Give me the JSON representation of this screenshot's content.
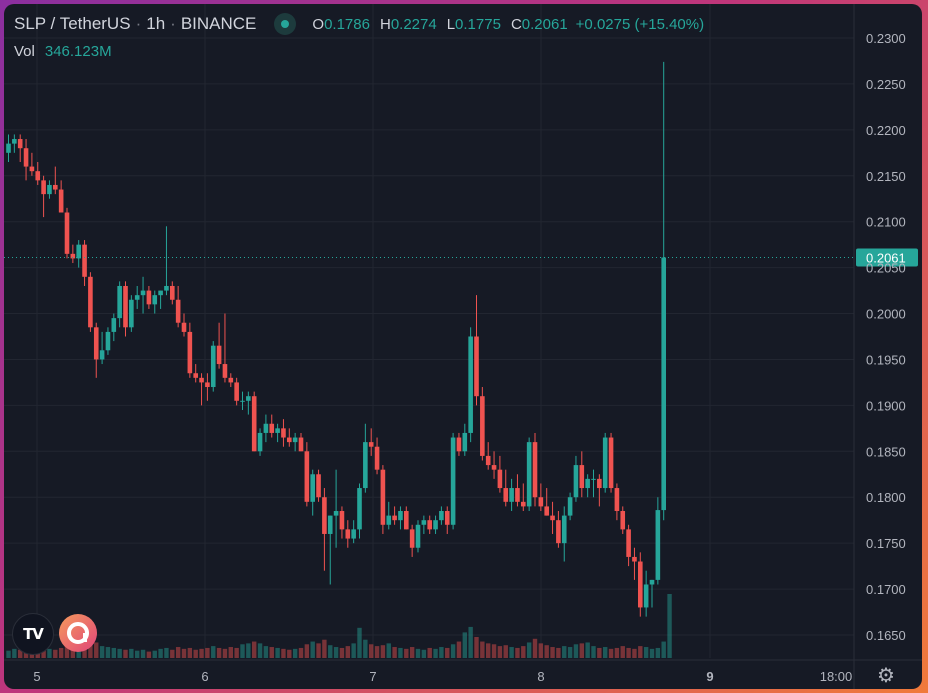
{
  "legend": {
    "symbol": "SLP / TetherUS",
    "interval": "1h",
    "exchange": "BINANCE",
    "ohlc": {
      "o_label": "O",
      "o": "0.1786",
      "h_label": "H",
      "h": "0.2274",
      "l_label": "L",
      "l": "0.1775",
      "c_label": "C",
      "c": "0.2061",
      "change": "+0.0275 (+15.40%)"
    },
    "vol_label": "Vol",
    "vol_value": "346.123M"
  },
  "colors": {
    "background": "#161a25",
    "up": "#26a69a",
    "down": "#ef5350",
    "grid": "#222631",
    "axis_text": "#b2b5be"
  },
  "icons": {
    "tradingview": "tradingview-logo",
    "brand": "brand-a-logo",
    "settings": "gear-icon"
  },
  "last_price_label": "0.2061",
  "chart_data": {
    "type": "candlestick",
    "title": "SLP / TetherUS",
    "x_ticks": [
      "5",
      "6",
      "7",
      "8",
      "9",
      "18:00"
    ],
    "bold_tick": "9",
    "y_ticks": [
      "0.1650",
      "0.1700",
      "0.1750",
      "0.1800",
      "0.1850",
      "0.1900",
      "0.1950",
      "0.2000",
      "0.2050",
      "0.2100",
      "0.2150",
      "0.2200",
      "0.2250",
      "0.2300"
    ],
    "ylim": [
      0.163,
      0.231
    ],
    "last_price": 0.2061,
    "candles": [
      [
        0.2175,
        0.2195,
        0.2165,
        0.2185
      ],
      [
        0.2185,
        0.2195,
        0.2175,
        0.219
      ],
      [
        0.219,
        0.2195,
        0.2165,
        0.218
      ],
      [
        0.218,
        0.219,
        0.2145,
        0.216
      ],
      [
        0.216,
        0.2175,
        0.215,
        0.2155
      ],
      [
        0.2155,
        0.2165,
        0.214,
        0.2145
      ],
      [
        0.2145,
        0.215,
        0.2105,
        0.213
      ],
      [
        0.213,
        0.2145,
        0.2125,
        0.214
      ],
      [
        0.214,
        0.216,
        0.213,
        0.2135
      ],
      [
        0.2135,
        0.2145,
        0.211,
        0.211
      ],
      [
        0.211,
        0.2115,
        0.206,
        0.2065
      ],
      [
        0.2065,
        0.2075,
        0.2055,
        0.206
      ],
      [
        0.206,
        0.208,
        0.205,
        0.2075
      ],
      [
        0.2075,
        0.208,
        0.203,
        0.204
      ],
      [
        0.204,
        0.2045,
        0.198,
        0.1985
      ],
      [
        0.1985,
        0.199,
        0.193,
        0.195
      ],
      [
        0.195,
        0.198,
        0.1945,
        0.196
      ],
      [
        0.196,
        0.1985,
        0.1955,
        0.198
      ],
      [
        0.198,
        0.2,
        0.197,
        0.1995
      ],
      [
        0.1995,
        0.2035,
        0.1985,
        0.203
      ],
      [
        0.203,
        0.2035,
        0.1975,
        0.1985
      ],
      [
        0.1985,
        0.202,
        0.198,
        0.2015
      ],
      [
        0.2015,
        0.203,
        0.2005,
        0.202
      ],
      [
        0.202,
        0.204,
        0.2,
        0.2025
      ],
      [
        0.2025,
        0.203,
        0.2005,
        0.201
      ],
      [
        0.201,
        0.2025,
        0.2,
        0.202
      ],
      [
        0.202,
        0.2025,
        0.2005,
        0.2025
      ],
      [
        0.2025,
        0.2095,
        0.202,
        0.203
      ],
      [
        0.203,
        0.2035,
        0.201,
        0.2015
      ],
      [
        0.2015,
        0.203,
        0.1985,
        0.199
      ],
      [
        0.199,
        0.2,
        0.1975,
        0.198
      ],
      [
        0.198,
        0.199,
        0.193,
        0.1935
      ],
      [
        0.1935,
        0.1945,
        0.1925,
        0.193
      ],
      [
        0.193,
        0.1935,
        0.19,
        0.1925
      ],
      [
        0.1925,
        0.1935,
        0.1905,
        0.192
      ],
      [
        0.192,
        0.197,
        0.1915,
        0.1965
      ],
      [
        0.1965,
        0.199,
        0.194,
        0.1945
      ],
      [
        0.1945,
        0.2,
        0.1925,
        0.193
      ],
      [
        0.193,
        0.1935,
        0.192,
        0.1925
      ],
      [
        0.1925,
        0.193,
        0.19,
        0.1905
      ],
      [
        0.1905,
        0.1915,
        0.1895,
        0.1905
      ],
      [
        0.1905,
        0.1915,
        0.189,
        0.191
      ],
      [
        0.191,
        0.1915,
        0.185,
        0.185
      ],
      [
        0.185,
        0.1875,
        0.1845,
        0.187
      ],
      [
        0.187,
        0.189,
        0.186,
        0.188
      ],
      [
        0.188,
        0.189,
        0.1865,
        0.187
      ],
      [
        0.187,
        0.188,
        0.186,
        0.1875
      ],
      [
        0.1875,
        0.1885,
        0.1855,
        0.1865
      ],
      [
        0.1865,
        0.1875,
        0.1855,
        0.186
      ],
      [
        0.186,
        0.187,
        0.185,
        0.1865
      ],
      [
        0.1865,
        0.187,
        0.185,
        0.185
      ],
      [
        0.185,
        0.186,
        0.179,
        0.1795
      ],
      [
        0.1795,
        0.183,
        0.178,
        0.1825
      ],
      [
        0.1825,
        0.183,
        0.1795,
        0.18
      ],
      [
        0.18,
        0.181,
        0.172,
        0.176
      ],
      [
        0.176,
        0.178,
        0.1705,
        0.178
      ],
      [
        0.178,
        0.183,
        0.1745,
        0.1785
      ],
      [
        0.1785,
        0.179,
        0.1755,
        0.1765
      ],
      [
        0.1765,
        0.1775,
        0.1745,
        0.1755
      ],
      [
        0.1755,
        0.1775,
        0.175,
        0.1765
      ],
      [
        0.1765,
        0.1815,
        0.1755,
        0.181
      ],
      [
        0.181,
        0.188,
        0.1805,
        0.186
      ],
      [
        0.186,
        0.1875,
        0.1845,
        0.1855
      ],
      [
        0.1855,
        0.1865,
        0.1825,
        0.183
      ],
      [
        0.183,
        0.1835,
        0.176,
        0.177
      ],
      [
        0.177,
        0.1795,
        0.1765,
        0.178
      ],
      [
        0.178,
        0.179,
        0.177,
        0.1775
      ],
      [
        0.1775,
        0.179,
        0.1765,
        0.1785
      ],
      [
        0.1785,
        0.179,
        0.1765,
        0.1765
      ],
      [
        0.1765,
        0.177,
        0.1735,
        0.1745
      ],
      [
        0.1745,
        0.1775,
        0.174,
        0.177
      ],
      [
        0.177,
        0.178,
        0.176,
        0.1775
      ],
      [
        0.1775,
        0.178,
        0.176,
        0.1765
      ],
      [
        0.1765,
        0.178,
        0.176,
        0.1775
      ],
      [
        0.1775,
        0.179,
        0.177,
        0.1785
      ],
      [
        0.1785,
        0.179,
        0.176,
        0.177
      ],
      [
        0.177,
        0.187,
        0.1765,
        0.1865
      ],
      [
        0.1865,
        0.187,
        0.1845,
        0.185
      ],
      [
        0.185,
        0.188,
        0.1845,
        0.187
      ],
      [
        0.187,
        0.1985,
        0.186,
        0.1975
      ],
      [
        0.1975,
        0.202,
        0.19,
        0.191
      ],
      [
        0.191,
        0.192,
        0.184,
        0.1845
      ],
      [
        0.1845,
        0.186,
        0.183,
        0.1835
      ],
      [
        0.1835,
        0.185,
        0.182,
        0.183
      ],
      [
        0.183,
        0.1845,
        0.1805,
        0.181
      ],
      [
        0.181,
        0.183,
        0.179,
        0.1795
      ],
      [
        0.1795,
        0.182,
        0.1785,
        0.181
      ],
      [
        0.181,
        0.1825,
        0.179,
        0.1795
      ],
      [
        0.1795,
        0.1815,
        0.1785,
        0.179
      ],
      [
        0.179,
        0.1865,
        0.1785,
        0.186
      ],
      [
        0.186,
        0.187,
        0.179,
        0.18
      ],
      [
        0.18,
        0.1815,
        0.1785,
        0.179
      ],
      [
        0.179,
        0.181,
        0.178,
        0.178
      ],
      [
        0.178,
        0.1795,
        0.176,
        0.1775
      ],
      [
        0.1775,
        0.1785,
        0.1745,
        0.175
      ],
      [
        0.175,
        0.179,
        0.173,
        0.178
      ],
      [
        0.178,
        0.1805,
        0.1775,
        0.18
      ],
      [
        0.18,
        0.1845,
        0.1795,
        0.1835
      ],
      [
        0.1835,
        0.185,
        0.18,
        0.181
      ],
      [
        0.181,
        0.1825,
        0.18,
        0.182
      ],
      [
        0.182,
        0.183,
        0.18,
        0.182
      ],
      [
        0.182,
        0.1825,
        0.179,
        0.181
      ],
      [
        0.181,
        0.187,
        0.1805,
        0.1865
      ],
      [
        0.1865,
        0.187,
        0.1805,
        0.181
      ],
      [
        0.181,
        0.1815,
        0.1775,
        0.1785
      ],
      [
        0.1785,
        0.179,
        0.176,
        0.1765
      ],
      [
        0.1765,
        0.177,
        0.1725,
        0.1735
      ],
      [
        0.1735,
        0.1745,
        0.171,
        0.173
      ],
      [
        0.173,
        0.174,
        0.167,
        0.168
      ],
      [
        0.168,
        0.172,
        0.167,
        0.1705
      ],
      [
        0.1705,
        0.171,
        0.168,
        0.171
      ],
      [
        0.171,
        0.18,
        0.1705,
        0.1786
      ],
      [
        0.1786,
        0.2274,
        0.1775,
        0.2061
      ]
    ],
    "volumes": [
      0.8,
      1.0,
      0.9,
      1.1,
      0.9,
      0.8,
      1.2,
      1.0,
      0.9,
      1.1,
      1.3,
      1.4,
      1.6,
      1.8,
      1.5,
      1.7,
      1.3,
      1.2,
      1.1,
      1.0,
      0.9,
      1.0,
      0.8,
      0.9,
      0.7,
      0.8,
      1.0,
      1.1,
      0.9,
      1.2,
      1.0,
      1.1,
      0.9,
      1.0,
      1.1,
      1.3,
      1.1,
      1.0,
      1.2,
      1.1,
      1.5,
      1.6,
      1.8,
      1.6,
      1.3,
      1.2,
      1.1,
      1.0,
      0.9,
      1.0,
      1.1,
      1.5,
      1.8,
      1.6,
      2.0,
      1.4,
      1.2,
      1.1,
      1.3,
      1.6,
      3.3,
      2.0,
      1.5,
      1.3,
      1.4,
      1.6,
      1.2,
      1.1,
      1.0,
      1.2,
      1.0,
      0.9,
      1.1,
      1.0,
      1.2,
      1.1,
      1.5,
      1.8,
      2.8,
      3.4,
      2.3,
      1.8,
      1.6,
      1.5,
      1.3,
      1.4,
      1.2,
      1.1,
      1.3,
      1.7,
      2.1,
      1.6,
      1.4,
      1.2,
      1.1,
      1.3,
      1.2,
      1.5,
      1.6,
      1.7,
      1.3,
      1.1,
      1.2,
      1.0,
      1.1,
      1.3,
      1.1,
      1.0,
      1.3,
      1.2,
      1.0,
      1.1,
      1.8,
      7.0
    ]
  }
}
